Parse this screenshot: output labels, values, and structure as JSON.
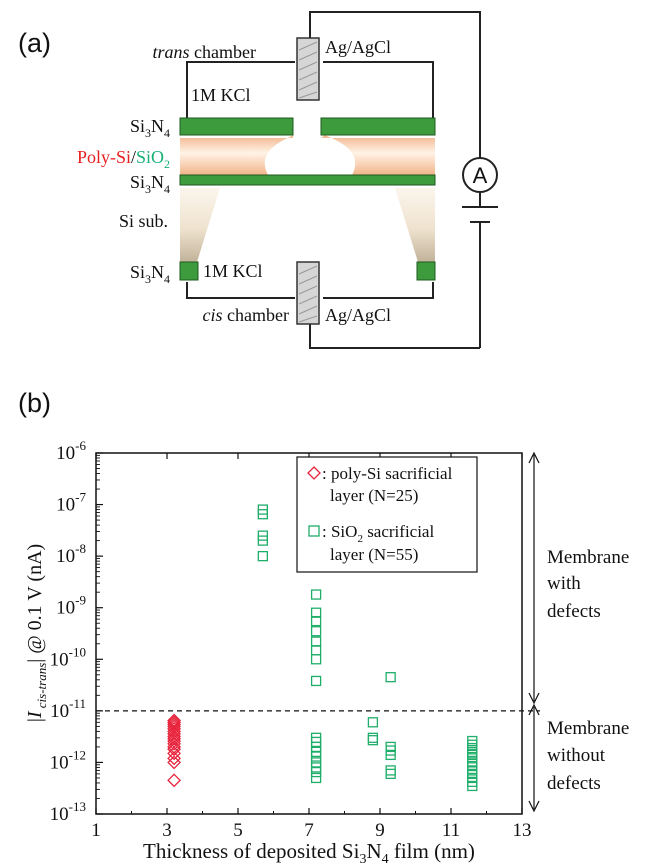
{
  "panel_a": {
    "label": "(a)",
    "trans_chamber_italic": "trans",
    "trans_chamber_rest": " chamber",
    "cis_chamber_italic": "cis",
    "cis_chamber_rest": " chamber",
    "electrode_top": "Ag/AgCl",
    "electrode_bottom": "Ag/AgCl",
    "kcl_top": "1M KCl",
    "kcl_bottom": "1M KCl",
    "layer_si3n4": "Si3N4",
    "layer_polysi": "Poly-Si",
    "layer_slash": "/",
    "layer_sio2": "SiO2",
    "layer_si_sub": "Si sub.",
    "ammeter": "A",
    "colors": {
      "nitride": "#3d9a3d",
      "polysi": "#e82020",
      "sio2": "#19b078",
      "wire": "#222222"
    }
  },
  "panel_b": {
    "label": "(b)",
    "annotation_with_defects": [
      "Membrane",
      "with",
      "defects"
    ],
    "annotation_without_defects": [
      "Membrane",
      "without",
      "defects"
    ]
  },
  "chart_data": {
    "type": "scatter",
    "xlabel": "Thickness of deposited Si3N4 film (nm)",
    "ylabel": "|I cis-trans| @ 0.1 V (nA)",
    "xlim": [
      1,
      13
    ],
    "ylim": [
      1e-13,
      1e-06
    ],
    "y_scale": "log",
    "x_ticks": [
      1,
      3,
      5,
      7,
      9,
      11,
      13
    ],
    "y_tick_exponents": [
      -13,
      -12,
      -11,
      -10,
      -9,
      -8,
      -7,
      -6
    ],
    "threshold_y": 1e-11,
    "legend_position": "top-right",
    "series": [
      {
        "name": "poly-Si sacrificial layer (N=25)",
        "marker": "diamond",
        "color": "#e8243c",
        "points": [
          [
            3.2,
            6.5e-12
          ],
          [
            3.2,
            6e-12
          ],
          [
            3.2,
            5.5e-12
          ],
          [
            3.2,
            5e-12
          ],
          [
            3.2,
            4.5e-12
          ],
          [
            3.2,
            4e-12
          ],
          [
            3.2,
            3.6e-12
          ],
          [
            3.2,
            3.2e-12
          ],
          [
            3.2,
            2.9e-12
          ],
          [
            3.2,
            2.6e-12
          ],
          [
            3.2,
            2.3e-12
          ],
          [
            3.2,
            2e-12
          ],
          [
            3.2,
            1.8e-12
          ],
          [
            3.2,
            1.5e-12
          ],
          [
            3.2,
            1.2e-12
          ],
          [
            3.2,
            1e-12
          ],
          [
            3.2,
            4.5e-13
          ]
        ]
      },
      {
        "name": "SiO2 sacrificial layer (N=55)",
        "marker": "square",
        "color": "#1fae6a",
        "points": [
          [
            5.7,
            8e-08
          ],
          [
            5.7,
            6.5e-08
          ],
          [
            5.7,
            2.5e-08
          ],
          [
            5.7,
            2e-08
          ],
          [
            5.7,
            1e-08
          ],
          [
            7.2,
            1.8e-09
          ],
          [
            7.2,
            8e-10
          ],
          [
            7.2,
            5.5e-10
          ],
          [
            7.2,
            3.5e-10
          ],
          [
            7.2,
            2.2e-10
          ],
          [
            7.2,
            1.5e-10
          ],
          [
            7.2,
            1e-10
          ],
          [
            7.2,
            3.8e-11
          ],
          [
            7.2,
            3e-12
          ],
          [
            7.2,
            2.5e-12
          ],
          [
            7.2,
            2e-12
          ],
          [
            7.2,
            1.6e-12
          ],
          [
            7.2,
            1.3e-12
          ],
          [
            7.2,
            1e-12
          ],
          [
            7.2,
            8e-13
          ],
          [
            7.2,
            6.5e-13
          ],
          [
            7.2,
            5e-13
          ],
          [
            8.8,
            6e-12
          ],
          [
            8.8,
            3e-12
          ],
          [
            8.8,
            2.7e-12
          ],
          [
            9.3,
            4.5e-11
          ],
          [
            9.3,
            2e-12
          ],
          [
            9.3,
            1.7e-12
          ],
          [
            9.3,
            1.4e-12
          ],
          [
            9.3,
            7e-13
          ],
          [
            9.3,
            6e-13
          ],
          [
            11.6,
            2.6e-12
          ],
          [
            11.6,
            2.2e-12
          ],
          [
            11.6,
            1.9e-12
          ],
          [
            11.6,
            1.6e-12
          ],
          [
            11.6,
            1.4e-12
          ],
          [
            11.6,
            1.2e-12
          ],
          [
            11.6,
            1e-12
          ],
          [
            11.6,
            8.5e-13
          ],
          [
            11.6,
            7e-13
          ],
          [
            11.6,
            6e-13
          ],
          [
            11.6,
            5e-13
          ],
          [
            11.6,
            4.2e-13
          ],
          [
            11.6,
            3.5e-13
          ]
        ]
      }
    ],
    "legend_entries": [
      {
        "line1": ": poly-Si sacrificial",
        "line2": "layer (N=25)"
      },
      {
        "line1": ": SiO",
        "sub": "2",
        "line1_rest": "  sacrificial",
        "line2": "layer (N=55)"
      }
    ]
  }
}
